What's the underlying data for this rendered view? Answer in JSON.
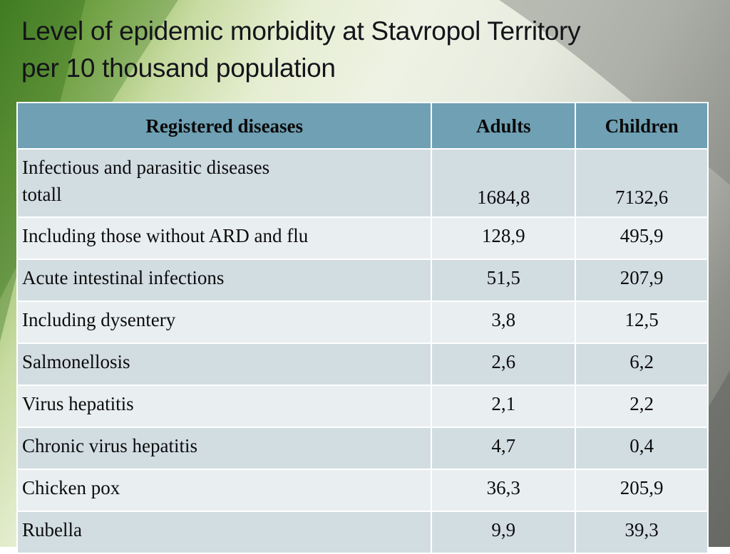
{
  "slide": {
    "title_line1": "Level of epidemic morbidity at Stavropol Territory",
    "title_line2": "per 10 thousand population"
  },
  "table": {
    "headers": [
      "Registered diseases",
      "Adults",
      "Children"
    ],
    "rows": [
      {
        "disease_line1": "Infectious and parasitic diseases",
        "disease_line2": "totall",
        "adults": "1684,8",
        "children": "7132,6"
      },
      {
        "disease": "Including those without ARD and flu",
        "adults": "128,9",
        "children": "495,9"
      },
      {
        "disease": "Acute intestinal infections",
        "adults": "51,5",
        "children": "207,9"
      },
      {
        "disease": "Including dysentery",
        "adults": "3,8",
        "children": "12,5"
      },
      {
        "disease": "Salmonellosis",
        "adults": "2,6",
        "children": "6,2"
      },
      {
        "disease": "Virus hepatitis",
        "adults": "2,1",
        "children": "2,2"
      },
      {
        "disease": "Chronic virus hepatitis",
        "adults": "4,7",
        "children": "0,4"
      },
      {
        "disease": "Chicken pox",
        "adults": "36,3",
        "children": "205,9"
      },
      {
        "disease": "Rubella",
        "adults": "9,9",
        "children": "39,3"
      }
    ]
  },
  "theme": {
    "header_color": "#6fa0b4",
    "row_odd_color": "#d2dde2",
    "row_even_color": "#e9eef0",
    "accent_green": "#4f8a2c"
  }
}
